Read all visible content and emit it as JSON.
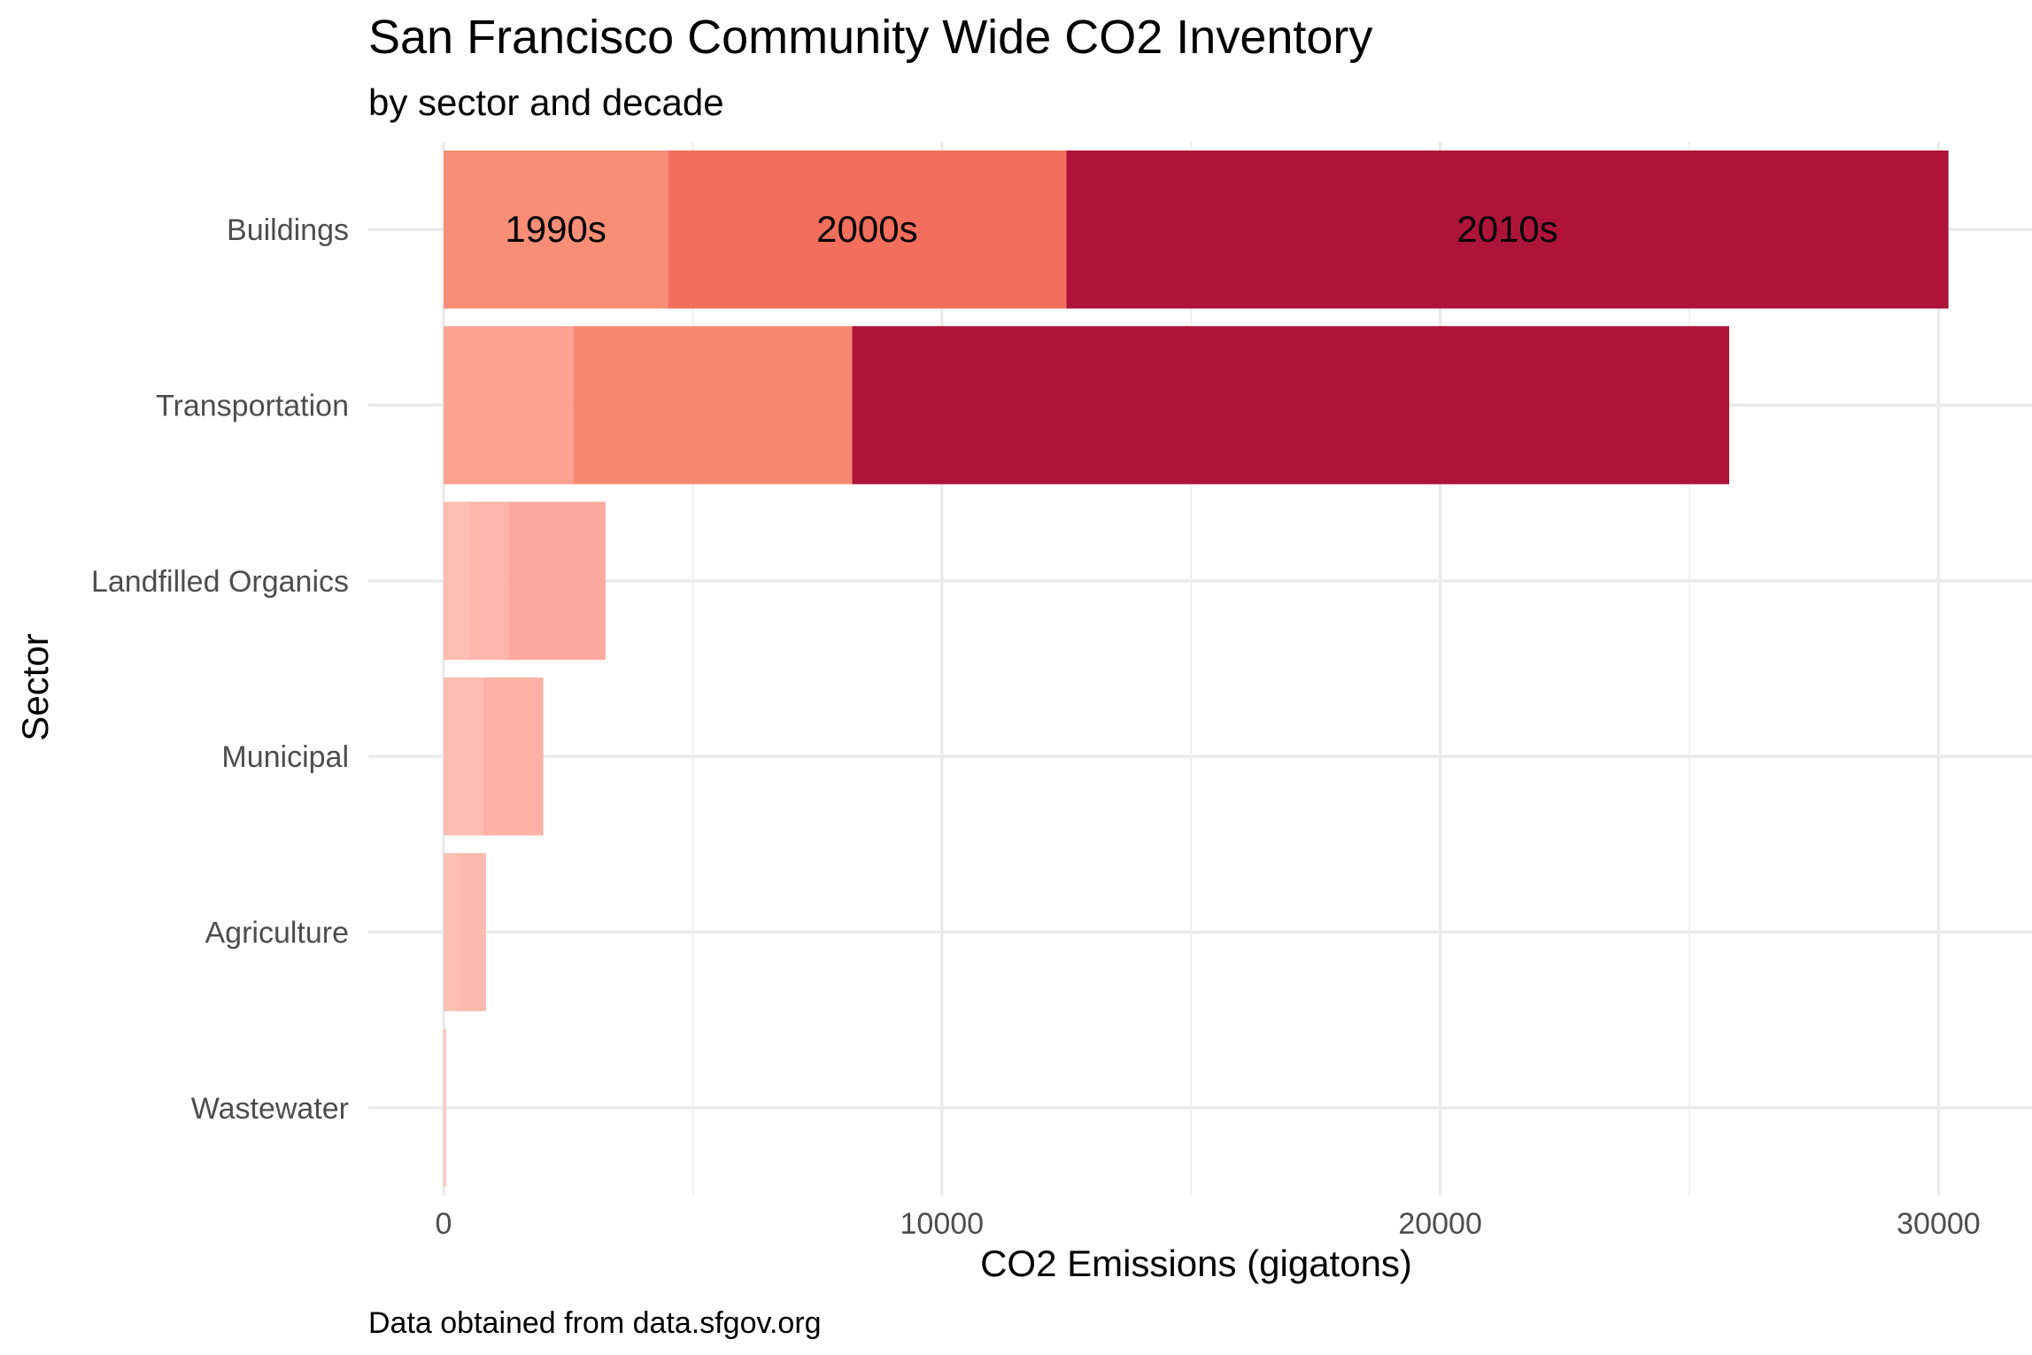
{
  "chart_data": {
    "type": "bar",
    "orientation": "horizontal",
    "stacked": true,
    "title": "San Francisco Community Wide CO2 Inventory",
    "subtitle": "by sector and decade",
    "xlabel": "CO2 Emissions (gigatons)",
    "ylabel": "Sector",
    "caption": "Data obtained from data.sfgov.org",
    "xlim": [
      -1450,
      31700
    ],
    "xticks": [
      0,
      10000,
      20000,
      30000
    ],
    "xtick_labels": [
      "0",
      "10000",
      "20000",
      "30000"
    ],
    "grid": true,
    "legend": "none",
    "decades": [
      "1990s",
      "2000s",
      "2010s"
    ],
    "categories": [
      "Buildings",
      "Transportation",
      "Landfilled Organics",
      "Municipal",
      "Agriculture",
      "Wastewater"
    ],
    "segments": [
      [
        {
          "decade": "1990s",
          "value": 4500,
          "color": "#f88e77"
        },
        {
          "decade": "2000s",
          "value": 8000,
          "color": "#f46e5d"
        },
        {
          "decade": "2010s",
          "value": 17700,
          "color": "#ae143a"
        }
      ],
      [
        {
          "decade": "1990s",
          "value": 2600,
          "color": "#fba293"
        },
        {
          "decade": "2000s",
          "value": 5600,
          "color": "#f88971"
        },
        {
          "decade": "2010s",
          "value": 17600,
          "color": "#ae143a"
        }
      ],
      [
        {
          "decade": "1990s",
          "value": 500,
          "color": "#fdbeb2"
        },
        {
          "decade": "2000s",
          "value": 800,
          "color": "#fdb6a9"
        },
        {
          "decade": "2010s",
          "value": 1950,
          "color": "#fcaa9d"
        }
      ],
      [
        {
          "decade": "1990s",
          "value": 800,
          "color": "#fdbdb1"
        },
        {
          "decade": "2000s",
          "value": 1200,
          "color": "#fdb2a5"
        }
      ],
      [
        {
          "decade": "1990s",
          "value": 250,
          "color": "#fdc1b6"
        },
        {
          "decade": "2000s",
          "value": 600,
          "color": "#fdbaad"
        }
      ],
      [
        {
          "decade": "1990s",
          "value": 50,
          "color": "#fec3b9"
        }
      ]
    ],
    "segment_labels": {
      "Buildings": [
        "1990s",
        "2000s",
        "2010s"
      ]
    }
  }
}
